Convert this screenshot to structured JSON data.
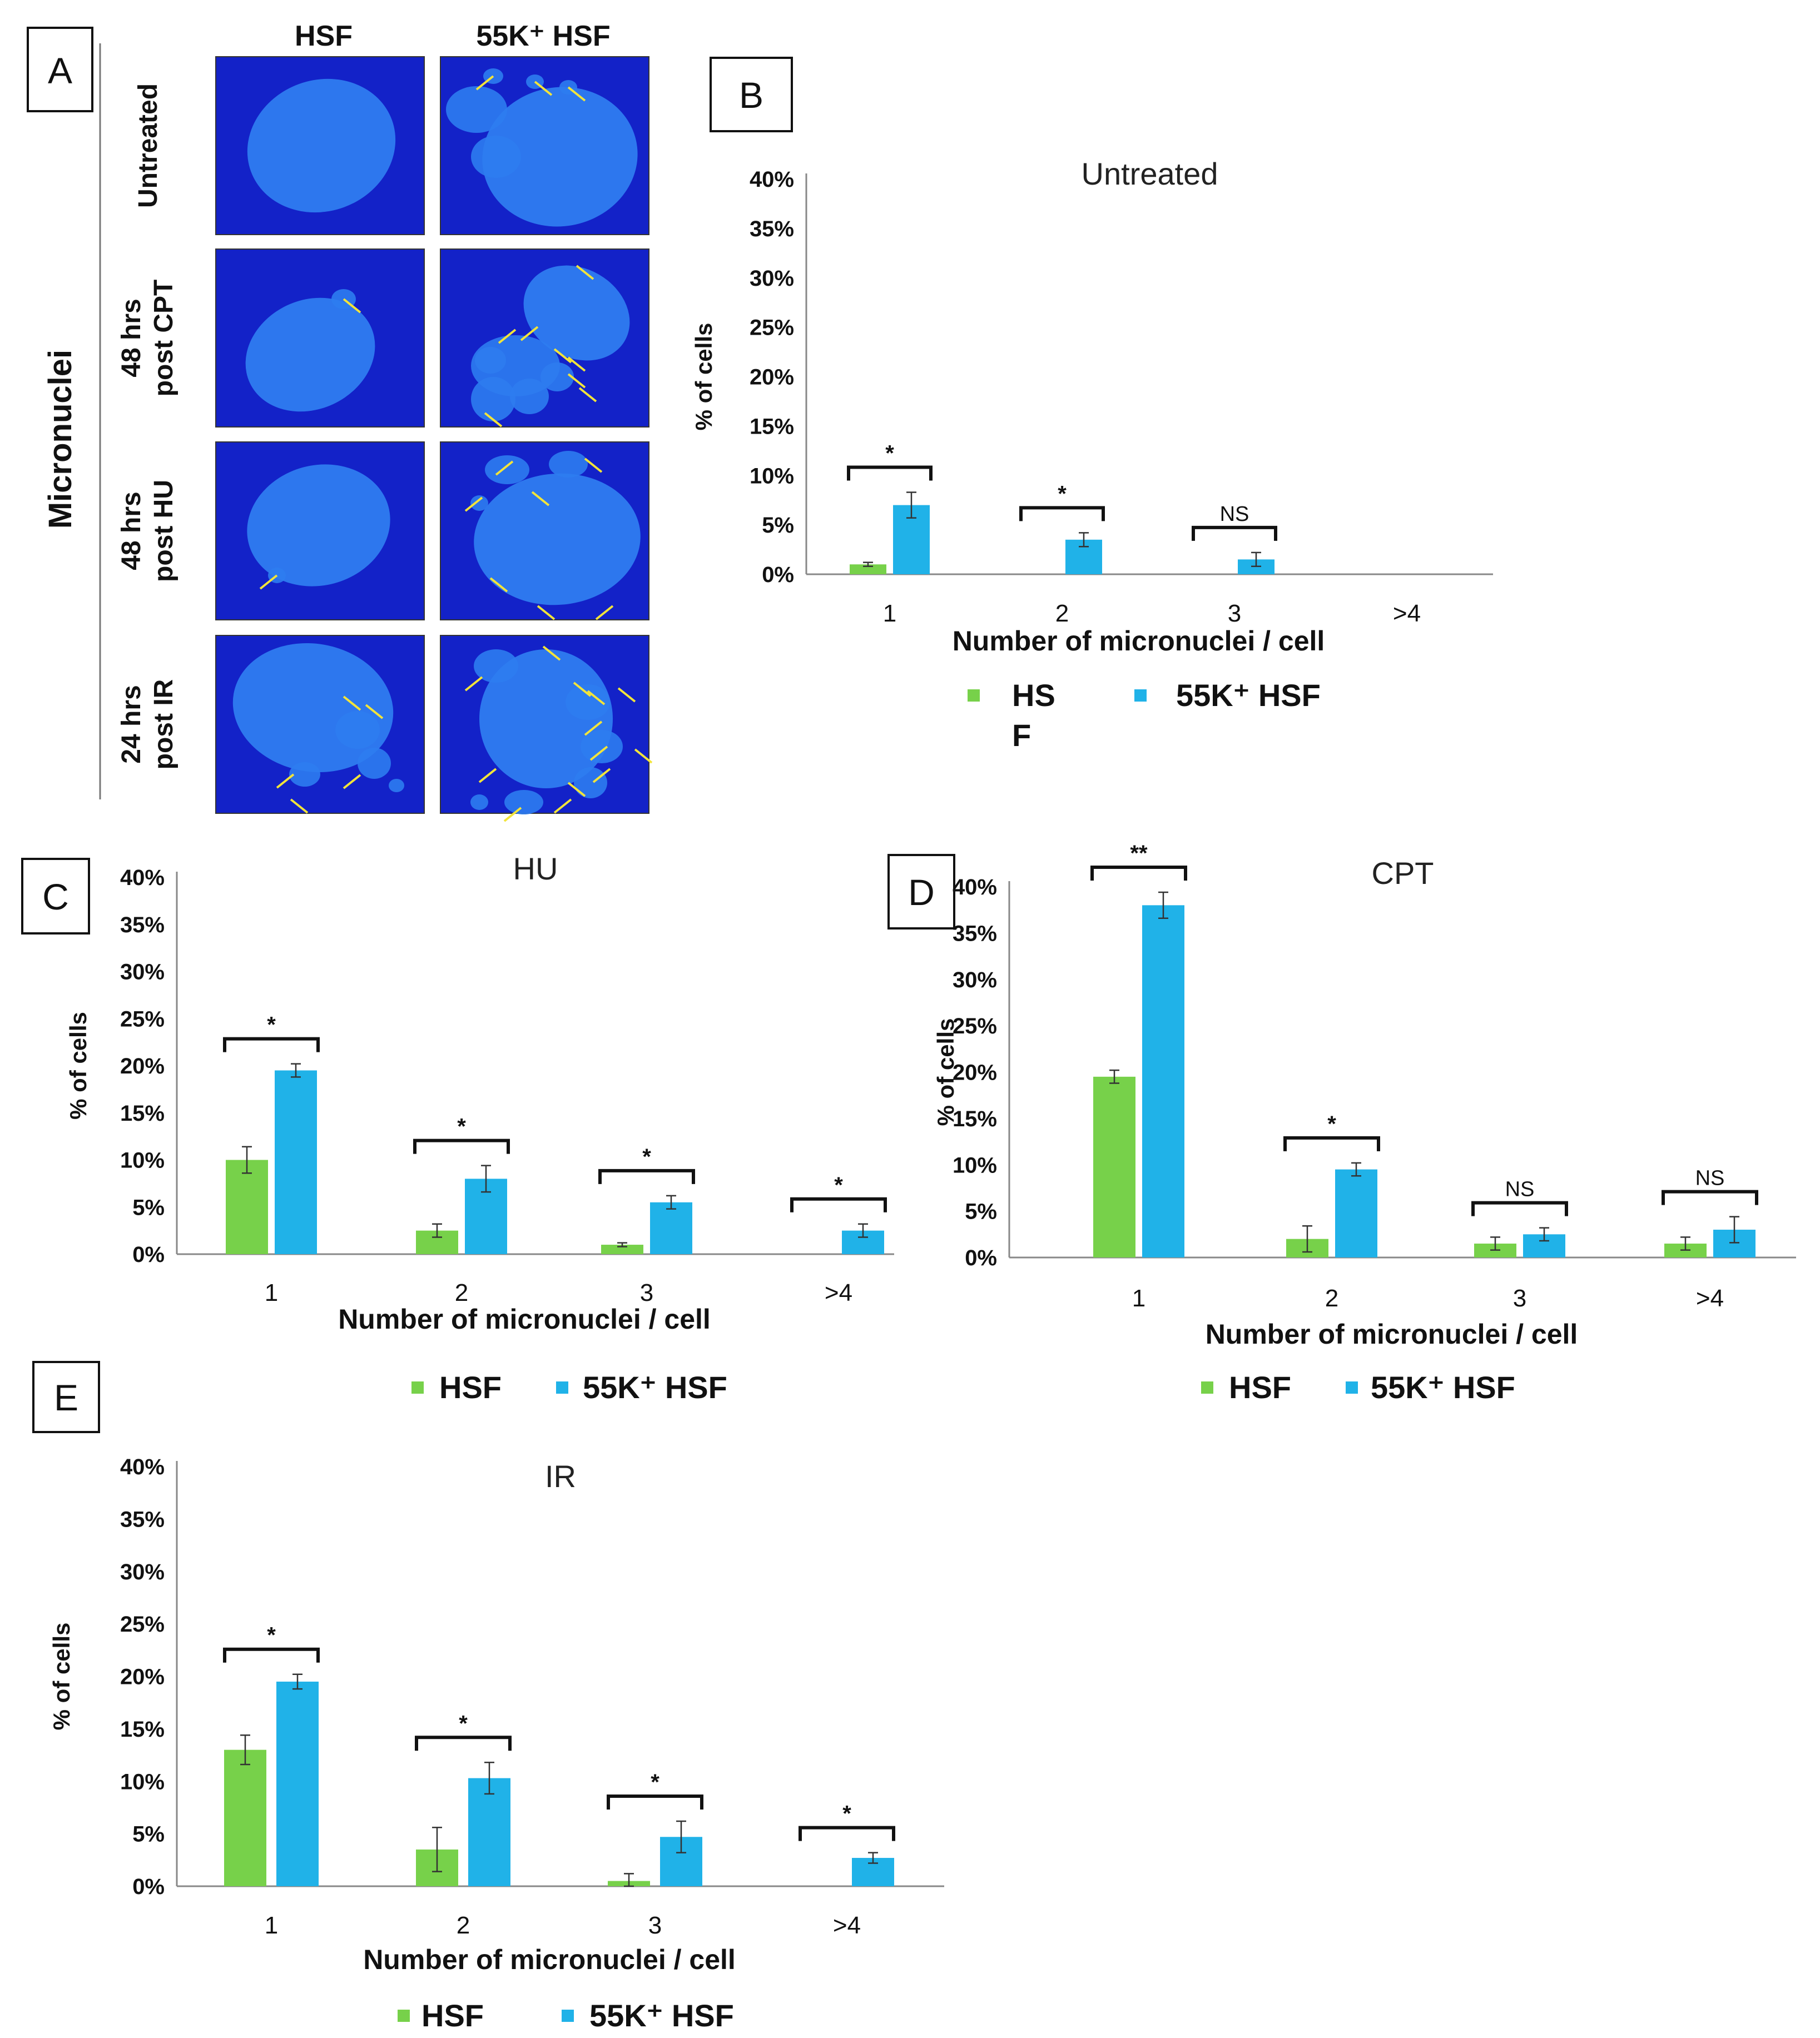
{
  "panel_a": {
    "label": "A",
    "side_label": "Micronuclei",
    "columns": [
      "HSF",
      "55K⁺ HSF"
    ],
    "rows": [
      {
        "line1": "Untreated",
        "line2": ""
      },
      {
        "line1": "48 hrs",
        "line2": "post CPT"
      },
      {
        "line1": "48 hrs",
        "line2": "post HU"
      },
      {
        "line1": "24 hrs",
        "line2": "post IR"
      }
    ]
  },
  "colors": {
    "hsf": "#77d14a",
    "k55": "#20b2e8",
    "nucleus": "#2e7cf0",
    "background": "#1322c8",
    "arrow": "#f2e43a"
  },
  "chart_data": [
    {
      "panel": "B",
      "type": "bar",
      "title": "Untreated",
      "xlabel": "Number of micronuclei / cell",
      "ylabel": "% of cells",
      "ylim": [
        0,
        40
      ],
      "yticks": [
        "0%",
        "5%",
        "10%",
        "15%",
        "20%",
        "25%",
        "30%",
        "35%",
        "40%"
      ],
      "categories": [
        "1",
        "2",
        "3",
        ">4"
      ],
      "series": [
        {
          "name": "HS F",
          "name_line1": "HS",
          "name_line2": "F",
          "values": [
            1,
            0,
            0,
            0
          ],
          "errors": [
            0.2,
            0,
            0,
            0
          ]
        },
        {
          "name": "55K⁺ HSF",
          "values": [
            7,
            3.5,
            1.5,
            0
          ],
          "errors": [
            1.3,
            0.7,
            0.7,
            0
          ]
        }
      ],
      "significance": [
        "*",
        "*",
        "NS",
        ""
      ]
    },
    {
      "panel": "C",
      "type": "bar",
      "title": "HU",
      "xlabel": "Number of micronuclei / cell",
      "ylabel": "% of cells",
      "ylim": [
        0,
        40
      ],
      "yticks": [
        "0%",
        "5%",
        "10%",
        "15%",
        "20%",
        "25%",
        "30%",
        "35%",
        "40%"
      ],
      "categories": [
        "1",
        "2",
        "3",
        ">4"
      ],
      "series": [
        {
          "name": "HSF",
          "values": [
            10,
            2.5,
            1,
            0
          ],
          "errors": [
            1.4,
            0.7,
            0.2,
            0
          ]
        },
        {
          "name": "55K⁺ HSF",
          "values": [
            19.5,
            8,
            5.5,
            2.5
          ],
          "errors": [
            0.7,
            1.4,
            0.7,
            0.7
          ]
        }
      ],
      "significance": [
        "*",
        "*",
        "*",
        "*"
      ]
    },
    {
      "panel": "D",
      "type": "bar",
      "title": "CPT",
      "xlabel": "Number of micronuclei / cell",
      "ylabel": "% of cells",
      "ylim": [
        0,
        40
      ],
      "yticks": [
        "0%",
        "5%",
        "10%",
        "15%",
        "20%",
        "25%",
        "30%",
        "35%",
        "40%"
      ],
      "categories": [
        "1",
        "2",
        "3",
        ">4"
      ],
      "series": [
        {
          "name": "HSF",
          "values": [
            19.5,
            2,
            1.5,
            1.5
          ],
          "errors": [
            0.7,
            1.4,
            0.7,
            0.7
          ]
        },
        {
          "name": "55K⁺ HSF",
          "values": [
            38,
            9.5,
            2.5,
            3
          ],
          "errors": [
            1.4,
            0.7,
            0.7,
            1.4
          ]
        }
      ],
      "significance": [
        "**",
        "*",
        "NS",
        "NS"
      ]
    },
    {
      "panel": "E",
      "type": "bar",
      "title": "IR",
      "xlabel": "Number of micronuclei / cell",
      "ylabel": "% of cells",
      "ylim": [
        0,
        40
      ],
      "yticks": [
        "0%",
        "5%",
        "10%",
        "15%",
        "20%",
        "25%",
        "30%",
        "35%",
        "40%"
      ],
      "categories": [
        "1",
        "2",
        "3",
        ">4"
      ],
      "series": [
        {
          "name": "HSF",
          "values": [
            13,
            3.5,
            0.5,
            0
          ],
          "errors": [
            1.4,
            2.1,
            0.7,
            0
          ]
        },
        {
          "name": "55K⁺ HSF",
          "values": [
            19.5,
            10.3,
            4.7,
            2.7
          ],
          "errors": [
            0.7,
            1.5,
            1.5,
            0.5
          ]
        }
      ],
      "significance": [
        "*",
        "*",
        "*",
        "*"
      ]
    }
  ]
}
